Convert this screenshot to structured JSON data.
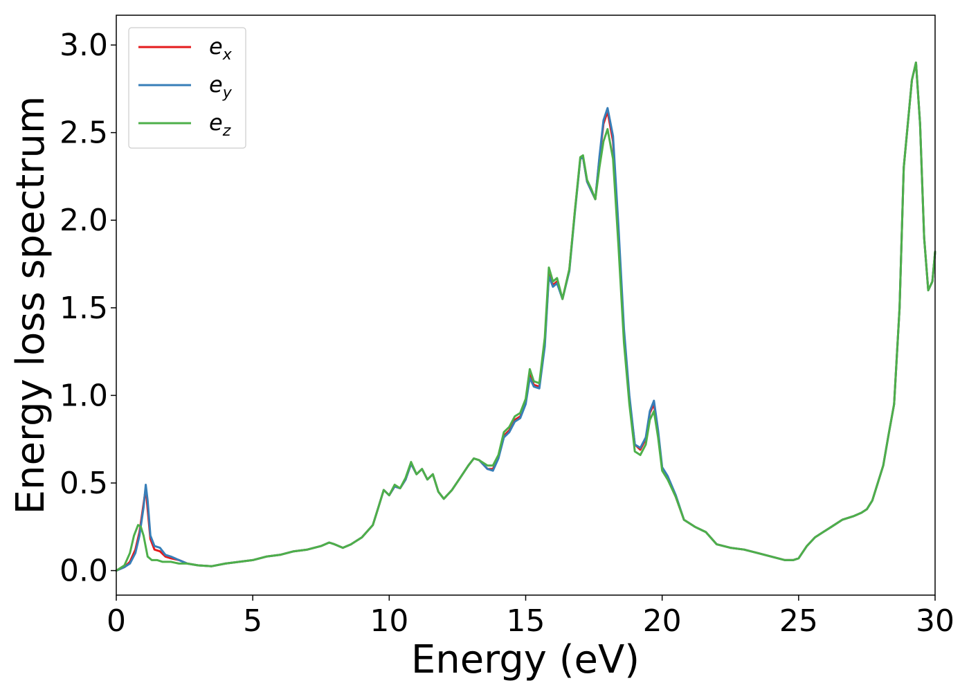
{
  "chart_data": {
    "type": "line",
    "title": "",
    "xlabel": "Energy (eV)",
    "ylabel": "Energy loss spectrum",
    "xlim": [
      0,
      30
    ],
    "ylim": [
      -0.14,
      3.17
    ],
    "xticks": [
      0,
      5,
      10,
      15,
      20,
      25,
      30
    ],
    "xtick_labels": [
      "0",
      "5",
      "10",
      "15",
      "20",
      "25",
      "30"
    ],
    "yticks": [
      0.0,
      0.5,
      1.0,
      1.5,
      2.0,
      2.5,
      3.0
    ],
    "ytick_labels": [
      "0.0",
      "0.5",
      "1.0",
      "1.5",
      "2.0",
      "2.5",
      "3.0"
    ],
    "grid": false,
    "legend_position": "top-left",
    "series": [
      {
        "name": "e_x",
        "label_base": "e",
        "label_sub": "x",
        "color": "#e41a1c",
        "x": [
          0,
          0.3,
          0.5,
          0.7,
          0.85,
          1.0,
          1.08,
          1.15,
          1.25,
          1.4,
          1.6,
          1.8,
          2.0,
          2.3,
          2.6,
          3.0,
          3.5,
          4.0,
          4.5,
          5.0,
          5.5,
          6.0,
          6.5,
          7.0,
          7.5,
          7.8,
          8.0,
          8.3,
          8.6,
          9.0,
          9.4,
          9.6,
          9.8,
          10.0,
          10.2,
          10.4,
          10.6,
          10.8,
          11.0,
          11.2,
          11.4,
          11.6,
          11.8,
          12.0,
          12.3,
          12.6,
          12.9,
          13.1,
          13.3,
          13.6,
          13.8,
          14.0,
          14.2,
          14.4,
          14.6,
          14.8,
          15.0,
          15.15,
          15.3,
          15.5,
          15.7,
          15.85,
          16.0,
          16.15,
          16.35,
          16.6,
          16.8,
          17.0,
          17.1,
          17.25,
          17.4,
          17.55,
          17.7,
          17.85,
          18.0,
          18.2,
          18.4,
          18.6,
          18.8,
          19.0,
          19.2,
          19.4,
          19.55,
          19.7,
          19.85,
          20.0,
          20.2,
          20.5,
          20.8,
          21.2,
          21.6,
          22.0,
          22.5,
          23.0,
          23.5,
          24.0,
          24.5,
          24.8,
          25.0,
          25.3,
          25.6,
          25.9,
          26.2,
          26.6,
          27.0,
          27.3,
          27.5,
          27.7,
          27.9,
          28.1,
          28.3,
          28.5,
          28.7,
          28.85,
          29.0,
          29.15,
          29.3,
          29.45,
          29.6,
          29.75,
          29.9,
          30.0
        ],
        "y": [
          0.0,
          0.02,
          0.05,
          0.12,
          0.22,
          0.38,
          0.47,
          0.35,
          0.18,
          0.12,
          0.11,
          0.08,
          0.07,
          0.06,
          0.04,
          0.03,
          0.025,
          0.04,
          0.05,
          0.06,
          0.08,
          0.09,
          0.11,
          0.12,
          0.14,
          0.16,
          0.15,
          0.13,
          0.15,
          0.19,
          0.26,
          0.36,
          0.46,
          0.43,
          0.48,
          0.47,
          0.52,
          0.61,
          0.55,
          0.58,
          0.52,
          0.55,
          0.45,
          0.41,
          0.46,
          0.53,
          0.6,
          0.64,
          0.63,
          0.58,
          0.58,
          0.65,
          0.77,
          0.8,
          0.86,
          0.88,
          0.96,
          1.12,
          1.06,
          1.05,
          1.3,
          1.69,
          1.63,
          1.65,
          1.55,
          1.72,
          2.05,
          2.35,
          2.36,
          2.22,
          2.17,
          2.12,
          2.35,
          2.55,
          2.62,
          2.45,
          1.92,
          1.35,
          0.98,
          0.72,
          0.69,
          0.75,
          0.9,
          0.95,
          0.78,
          0.58,
          0.53,
          0.42,
          0.29,
          0.25,
          0.22,
          0.15,
          0.13,
          0.12,
          0.1,
          0.08,
          0.06,
          0.06,
          0.07,
          0.14,
          0.19,
          0.22,
          0.25,
          0.29,
          0.31,
          0.33,
          0.35,
          0.4,
          0.5,
          0.6,
          0.78,
          0.95,
          1.5,
          2.3,
          2.55,
          2.8,
          2.9,
          2.55,
          1.9,
          1.6,
          1.65,
          1.82
        ]
      },
      {
        "name": "e_y",
        "label_base": "e",
        "label_sub": "y",
        "color": "#377eb8",
        "x": [
          0,
          0.3,
          0.5,
          0.7,
          0.85,
          1.0,
          1.08,
          1.15,
          1.25,
          1.4,
          1.6,
          1.8,
          2.0,
          2.3,
          2.6,
          3.0,
          3.5,
          4.0,
          4.5,
          5.0,
          5.5,
          6.0,
          6.5,
          7.0,
          7.5,
          7.8,
          8.0,
          8.3,
          8.6,
          9.0,
          9.4,
          9.6,
          9.8,
          10.0,
          10.2,
          10.4,
          10.6,
          10.8,
          11.0,
          11.2,
          11.4,
          11.6,
          11.8,
          12.0,
          12.3,
          12.6,
          12.9,
          13.1,
          13.3,
          13.6,
          13.8,
          14.0,
          14.2,
          14.4,
          14.6,
          14.8,
          15.0,
          15.15,
          15.3,
          15.5,
          15.7,
          15.85,
          16.0,
          16.15,
          16.35,
          16.6,
          16.8,
          17.0,
          17.1,
          17.25,
          17.4,
          17.55,
          17.7,
          17.85,
          18.0,
          18.2,
          18.4,
          18.6,
          18.8,
          19.0,
          19.2,
          19.4,
          19.55,
          19.7,
          19.85,
          20.0,
          20.2,
          20.5,
          20.8,
          21.2,
          21.6,
          22.0,
          22.5,
          23.0,
          23.5,
          24.0,
          24.5,
          24.8,
          25.0,
          25.3,
          25.6,
          25.9,
          26.2,
          26.6,
          27.0,
          27.3,
          27.5,
          27.7,
          27.9,
          28.1,
          28.3,
          28.5,
          28.7,
          28.85,
          29.0,
          29.15,
          29.3,
          29.45,
          29.6,
          29.75,
          29.9,
          30.0
        ],
        "y": [
          0.0,
          0.02,
          0.04,
          0.1,
          0.2,
          0.36,
          0.49,
          0.4,
          0.2,
          0.14,
          0.13,
          0.09,
          0.08,
          0.06,
          0.04,
          0.03,
          0.025,
          0.04,
          0.05,
          0.06,
          0.08,
          0.09,
          0.11,
          0.12,
          0.14,
          0.16,
          0.15,
          0.13,
          0.15,
          0.19,
          0.26,
          0.36,
          0.46,
          0.43,
          0.48,
          0.47,
          0.52,
          0.61,
          0.55,
          0.58,
          0.52,
          0.55,
          0.45,
          0.41,
          0.46,
          0.53,
          0.6,
          0.64,
          0.63,
          0.58,
          0.57,
          0.64,
          0.76,
          0.79,
          0.85,
          0.87,
          0.95,
          1.1,
          1.05,
          1.04,
          1.28,
          1.68,
          1.62,
          1.64,
          1.55,
          1.71,
          2.04,
          2.35,
          2.36,
          2.22,
          2.17,
          2.12,
          2.36,
          2.57,
          2.64,
          2.48,
          1.96,
          1.38,
          1.0,
          0.72,
          0.7,
          0.76,
          0.91,
          0.97,
          0.8,
          0.59,
          0.54,
          0.43,
          0.29,
          0.25,
          0.22,
          0.15,
          0.13,
          0.12,
          0.1,
          0.08,
          0.06,
          0.06,
          0.07,
          0.14,
          0.19,
          0.22,
          0.25,
          0.29,
          0.31,
          0.33,
          0.35,
          0.4,
          0.5,
          0.6,
          0.78,
          0.95,
          1.5,
          2.3,
          2.55,
          2.8,
          2.9,
          2.55,
          1.9,
          1.6,
          1.65,
          1.82
        ]
      },
      {
        "name": "e_z",
        "label_base": "e",
        "label_sub": "z",
        "color": "#4daf4a",
        "x": [
          0,
          0.3,
          0.5,
          0.65,
          0.8,
          0.9,
          1.0,
          1.15,
          1.3,
          1.5,
          1.7,
          2.0,
          2.3,
          2.6,
          3.0,
          3.5,
          4.0,
          4.5,
          5.0,
          5.5,
          6.0,
          6.5,
          7.0,
          7.5,
          7.8,
          8.0,
          8.3,
          8.6,
          9.0,
          9.4,
          9.6,
          9.8,
          10.0,
          10.2,
          10.4,
          10.6,
          10.8,
          11.0,
          11.2,
          11.4,
          11.6,
          11.8,
          12.0,
          12.3,
          12.6,
          12.9,
          13.1,
          13.3,
          13.6,
          13.8,
          14.0,
          14.2,
          14.4,
          14.6,
          14.8,
          15.0,
          15.15,
          15.3,
          15.5,
          15.7,
          15.85,
          16.0,
          16.15,
          16.35,
          16.6,
          16.8,
          17.0,
          17.1,
          17.25,
          17.4,
          17.55,
          17.7,
          17.85,
          18.0,
          18.2,
          18.4,
          18.6,
          18.8,
          19.0,
          19.2,
          19.4,
          19.55,
          19.7,
          19.85,
          20.0,
          20.2,
          20.5,
          20.8,
          21.2,
          21.6,
          22.0,
          22.5,
          23.0,
          23.5,
          24.0,
          24.5,
          24.8,
          25.0,
          25.3,
          25.6,
          25.9,
          26.2,
          26.6,
          27.0,
          27.3,
          27.5,
          27.7,
          27.9,
          28.1,
          28.3,
          28.5,
          28.7,
          28.85,
          29.0,
          29.15,
          29.3,
          29.45,
          29.6,
          29.75,
          29.9,
          30.0
        ],
        "y": [
          0.0,
          0.03,
          0.1,
          0.2,
          0.26,
          0.25,
          0.2,
          0.08,
          0.06,
          0.06,
          0.05,
          0.05,
          0.04,
          0.04,
          0.03,
          0.025,
          0.04,
          0.05,
          0.06,
          0.08,
          0.09,
          0.11,
          0.12,
          0.14,
          0.16,
          0.15,
          0.13,
          0.15,
          0.19,
          0.26,
          0.36,
          0.46,
          0.43,
          0.49,
          0.47,
          0.53,
          0.62,
          0.55,
          0.58,
          0.52,
          0.55,
          0.45,
          0.41,
          0.46,
          0.53,
          0.6,
          0.64,
          0.63,
          0.6,
          0.6,
          0.66,
          0.79,
          0.82,
          0.88,
          0.9,
          0.98,
          1.15,
          1.08,
          1.07,
          1.33,
          1.73,
          1.65,
          1.67,
          1.55,
          1.72,
          2.05,
          2.36,
          2.37,
          2.23,
          2.18,
          2.12,
          2.3,
          2.45,
          2.52,
          2.35,
          1.85,
          1.3,
          0.95,
          0.68,
          0.66,
          0.72,
          0.86,
          0.91,
          0.76,
          0.57,
          0.52,
          0.42,
          0.29,
          0.25,
          0.22,
          0.15,
          0.13,
          0.12,
          0.1,
          0.08,
          0.06,
          0.06,
          0.07,
          0.14,
          0.19,
          0.22,
          0.25,
          0.29,
          0.31,
          0.33,
          0.35,
          0.4,
          0.5,
          0.6,
          0.78,
          0.95,
          1.5,
          2.3,
          2.55,
          2.8,
          2.9,
          2.55,
          1.9,
          1.6,
          1.65,
          1.82
        ]
      }
    ]
  }
}
